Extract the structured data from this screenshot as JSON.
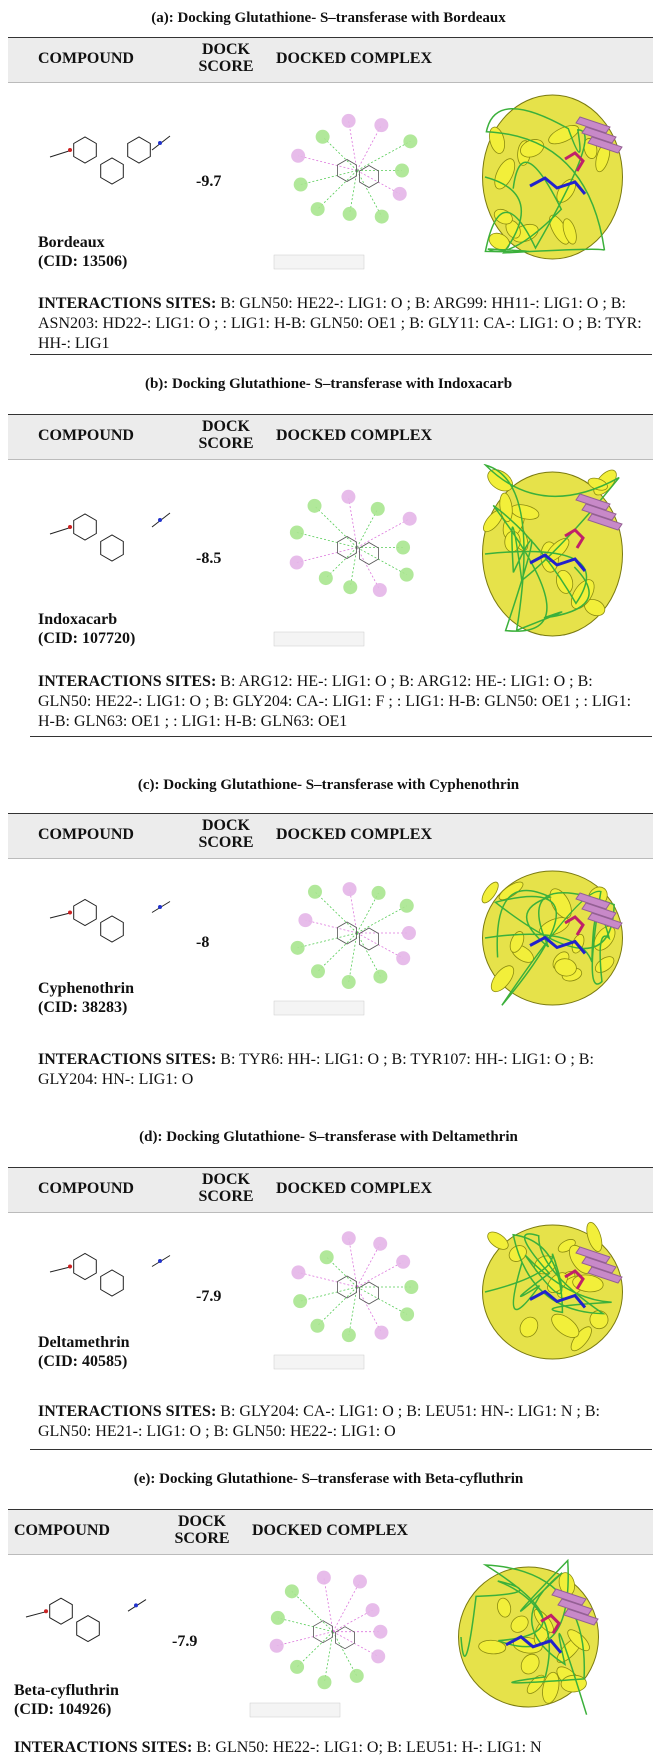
{
  "panels": [
    {
      "title": "(a): Docking Glutathione- S–transferase with Bordeaux",
      "headers": [
        "COMPOUND",
        "DOCK SCORE",
        "DOCKED COMPLEX"
      ],
      "compound": "Bordeaux",
      "cid": "(CID: 13506)",
      "dock_score": -9.7,
      "interactions_label": "INTERACTIONS SITES:",
      "interactions": "B: GLN50: HE22-: LIG1: O ; B: ARG99: HH11-: LIG1: O ; B: ASN203: HD22-: LIG1: O ; : LIG1: H-B: GLN50: OE1 ; B: GLY11: CA-: LIG1: O ; B: TYR: HH-: LIG1"
    },
    {
      "title": "(b): Docking Glutathione- S–transferase with Indoxacarb",
      "headers": [
        "COMPOUND",
        "DOCK SCORE",
        "DOCKED COMPLEX"
      ],
      "compound": "Indoxacarb",
      "cid": "(CID: 107720)",
      "dock_score": -8.5,
      "interactions_label": "INTERACTIONS SITES:",
      "interactions": "B: ARG12: HE-: LIG1: O ; B: ARG12: HE-: LIG1: O ; B: GLN50: HE22-: LIG1: O ; B: GLY204: CA-: LIG1: F ; : LIG1: H-B: GLN50: OE1 ; : LIG1: H-B: GLN63: OE1 ; : LIG1: H-B: GLN63: OE1"
    },
    {
      "title": "(c): Docking Glutathione- S–transferase with Cyphenothrin",
      "headers": [
        "COMPOUND",
        "DOCK SCORE",
        "DOCKED COMPLEX"
      ],
      "compound": "Cyphenothrin",
      "cid": "(CID: 38283)",
      "dock_score": -8.0,
      "interactions_label": "INTERACTIONS SITES:",
      "interactions": "B: TYR6: HH-: LIG1: O ; B: TYR107: HH-: LIG1: O ; B: GLY204: HN-: LIG1: O"
    },
    {
      "title": "(d): Docking Glutathione- S–transferase with Deltamethrin",
      "headers": [
        "COMPOUND",
        "DOCK SCORE",
        "DOCKED COMPLEX"
      ],
      "compound": "Deltamethrin",
      "cid": "(CID: 40585)",
      "dock_score": -7.9,
      "interactions_label": "INTERACTIONS SITES:",
      "interactions": "B: GLY204: CA-: LIG1: O ; B: LEU51: HN-: LIG1: N ; B: GLN50: HE21-: LIG1: O ; B: GLN50: HE22-: LIG1: O"
    },
    {
      "title": "(e): Docking Glutathione- S–transferase with Beta-cyfluthrin",
      "headers": [
        "COMPOUND",
        "DOCK SCORE",
        "DOCKED COMPLEX"
      ],
      "compound": "Beta-cyfluthrin",
      "cid": "(CID: 104926)",
      "dock_score": -7.9,
      "interactions_label": "INTERACTIONS SITES:",
      "interactions": "B: GLN50: HE22-: LIG1: O; B: LEU51: H-: LIG1: N"
    }
  ]
}
